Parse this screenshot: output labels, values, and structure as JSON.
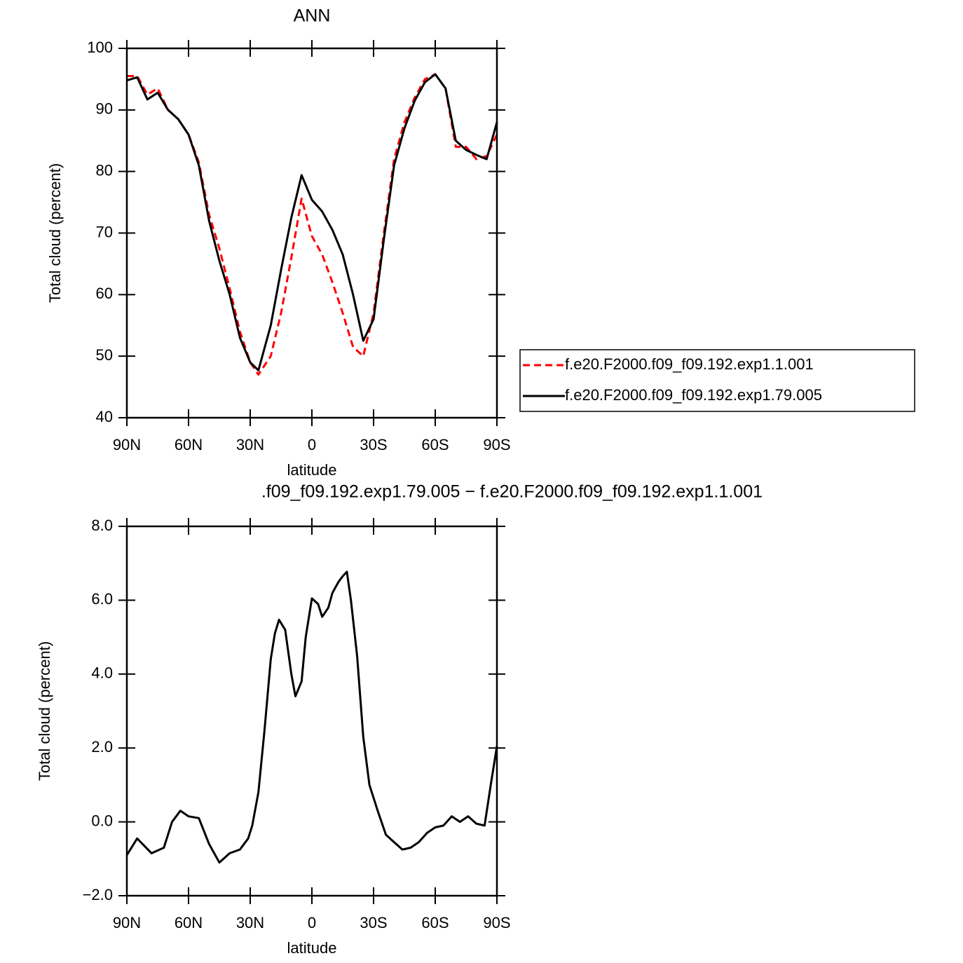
{
  "chart_data": [
    {
      "type": "line",
      "title": "ANN",
      "xlabel": "latitude",
      "ylabel": "Total cloud (percent)",
      "x": [
        90,
        85,
        80,
        75,
        70,
        65,
        60,
        55,
        50,
        45,
        40,
        35,
        30,
        26,
        20,
        15,
        10,
        5,
        0,
        -5,
        -10,
        -15,
        -20,
        -25,
        -30,
        -35,
        -40,
        -45,
        -50,
        -55,
        -60,
        -65,
        -70,
        -75,
        -80,
        -85,
        -90
      ],
      "series": [
        {
          "name": "f.e20.F2000.f09_f09.192.exp1.1.001",
          "color": "#ff0000",
          "line_style": "dashed",
          "values": [
            95.5,
            95.5,
            92.5,
            93.5,
            90,
            88.5,
            86,
            81.5,
            73,
            67.5,
            61,
            54,
            49,
            47,
            50,
            57,
            66,
            75.6,
            69.5,
            66.5,
            62,
            57,
            51.5,
            50,
            57,
            70,
            82,
            88,
            92,
            95,
            95.8,
            93.5,
            84,
            84,
            82,
            82.5,
            86
          ]
        },
        {
          "name": "f.e20.F2000.f09_f09.192.exp1.79.005",
          "color": "#000000",
          "line_style": "solid",
          "values": [
            94.8,
            95.3,
            91.7,
            92.8,
            90,
            88.5,
            86,
            81,
            72,
            65.5,
            60,
            53,
            49,
            47.7,
            55,
            64,
            72.5,
            79.4,
            75.4,
            73.5,
            70.5,
            66.5,
            60,
            52.5,
            56,
            69,
            81,
            87,
            91.5,
            94.5,
            95.8,
            93.5,
            85,
            83.5,
            82.7,
            82,
            88
          ]
        }
      ],
      "xlim": [
        90,
        -90
      ],
      "xticks": [
        {
          "value": 90,
          "label": "90N"
        },
        {
          "value": 60,
          "label": "60N"
        },
        {
          "value": 30,
          "label": "30N"
        },
        0,
        {
          "value": -30,
          "label": "30S"
        },
        {
          "value": -60,
          "label": "60S"
        },
        {
          "value": -90,
          "label": "90S"
        }
      ],
      "ylim": [
        40,
        100
      ],
      "yticks": [
        40,
        50,
        60,
        70,
        80,
        90,
        100
      ],
      "legend": "right"
    },
    {
      "type": "line",
      "title": ".f09_f09.192.exp1.79.005 − f.e20.F2000.f09_f09.192.exp1.1.001",
      "xlabel": "latitude",
      "ylabel": "Total cloud (percent)",
      "x": [
        90,
        85,
        78,
        72,
        68,
        64,
        60,
        55,
        50,
        45,
        40,
        35,
        31,
        29,
        26,
        23,
        20,
        18,
        16,
        13,
        10,
        8,
        5,
        3,
        0,
        -3,
        -5,
        -8,
        -10,
        -13,
        -15,
        -17,
        -19,
        -22,
        -25,
        -28,
        -32,
        -36,
        -40,
        -44,
        -48,
        -52,
        -56,
        -60,
        -64,
        -68,
        -72,
        -76,
        -80,
        -84,
        -87,
        -90
      ],
      "series": [
        {
          "color": "#000000",
          "line_style": "solid",
          "values": [
            -0.9,
            -0.45,
            -0.85,
            -0.7,
            0,
            0.3,
            0.15,
            0.1,
            -0.6,
            -1.1,
            -0.85,
            -0.75,
            -0.45,
            -0.1,
            0.8,
            2.5,
            4.4,
            5.1,
            5.47,
            5.2,
            4.0,
            3.4,
            3.8,
            5.0,
            6.05,
            5.9,
            5.55,
            5.8,
            6.2,
            6.5,
            6.65,
            6.77,
            6.0,
            4.5,
            2.3,
            1.0,
            0.3,
            -0.35,
            -0.55,
            -0.75,
            -0.7,
            -0.55,
            -0.3,
            -0.15,
            -0.1,
            0.15,
            0,
            0.15,
            -0.05,
            -0.1,
            1.0,
            2.05
          ]
        }
      ],
      "xlim": [
        90,
        -90
      ],
      "xticks": [
        {
          "value": 90,
          "label": "90N"
        },
        {
          "value": 60,
          "label": "60N"
        },
        {
          "value": 30,
          "label": "30N"
        },
        0,
        {
          "value": -30,
          "label": "30S"
        },
        {
          "value": -60,
          "label": "60S"
        },
        {
          "value": -90,
          "label": "90S"
        }
      ],
      "ylim": [
        -2,
        8
      ],
      "yticks": [
        {
          "value": -2,
          "label": "−2.0"
        },
        {
          "value": 0,
          "label": "0.0"
        },
        {
          "value": 2,
          "label": "2.0"
        },
        {
          "value": 4,
          "label": "4.0"
        },
        {
          "value": 6,
          "label": "6.0"
        },
        {
          "value": 8,
          "label": "8.0"
        }
      ]
    }
  ]
}
